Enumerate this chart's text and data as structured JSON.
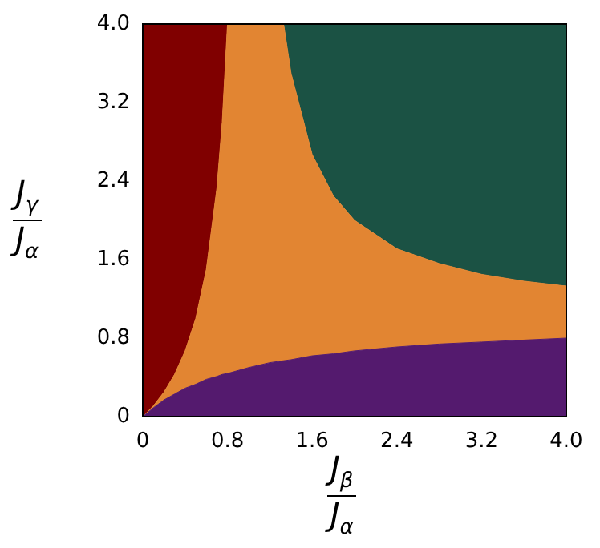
{
  "chart_data": {
    "type": "area",
    "stacked": true,
    "xlabel": "J$_{β}$\nJ$_{α}$",
    "ylabel": "J$_{γ}$\nJ$_{α}$",
    "x": [
      0,
      0.1,
      0.2,
      0.3,
      0.4,
      0.5,
      0.6,
      0.7,
      0.75,
      0.8,
      1.0,
      1.2,
      1.33,
      1.4,
      1.6,
      1.8,
      2.0,
      2.4,
      2.8,
      3.2,
      3.6,
      4.0
    ],
    "series": [
      {
        "color": "#541a6e",
        "values": [
          0,
          0.09,
          0.17,
          0.23,
          0.29,
          0.33,
          0.38,
          0.41,
          0.43,
          0.44,
          0.5,
          0.55,
          0.57,
          0.58,
          0.62,
          0.64,
          0.67,
          0.71,
          0.74,
          0.76,
          0.78,
          0.8
        ]
      },
      {
        "color": "#e28532",
        "values": [
          0,
          0.02,
          0.08,
          0.2,
          0.38,
          0.67,
          1.12,
          1.92,
          2.57,
          3.56,
          3.5,
          3.45,
          3.43,
          2.92,
          2.05,
          1.61,
          1.33,
          1.0,
          0.82,
          0.69,
          0.6,
          0.53
        ]
      },
      {
        "color": "#800000",
        "values": [
          4,
          3.89,
          3.75,
          3.57,
          3.33,
          3.0,
          2.5,
          1.67,
          1.0,
          0,
          null,
          null,
          null,
          null,
          null,
          null,
          null,
          null,
          null,
          null,
          null,
          null
        ]
      },
      {
        "color": "#1b5244",
        "values": [
          null,
          null,
          null,
          null,
          null,
          null,
          null,
          null,
          null,
          null,
          null,
          null,
          0,
          0.5,
          1.33,
          1.75,
          2.0,
          2.29,
          2.44,
          2.55,
          2.62,
          2.67
        ]
      }
    ],
    "xlim": [
      0,
      4
    ],
    "ylim": [
      0,
      4
    ],
    "xticks": [
      0,
      0.8,
      1.6,
      2.4,
      3.2,
      {
        "value": 4,
        "label": "4.0"
      }
    ],
    "yticks": [
      0,
      0.8,
      1.6,
      2.4,
      3.2,
      {
        "value": 4,
        "label": "4.0"
      }
    ],
    "grid": false,
    "legend": false
  }
}
